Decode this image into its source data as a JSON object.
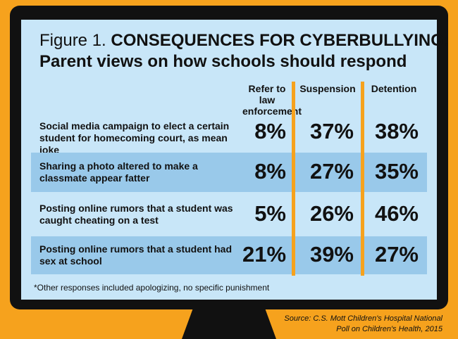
{
  "header": {
    "figure": "Figure 1.",
    "title": "CONSEQUENCES FOR CYBERBULLYING:",
    "subtitle": "Parent views on how schools should respond"
  },
  "table": {
    "columns": [
      "Refer to law enforcement",
      "Suspension",
      "Detention"
    ],
    "rows": [
      {
        "label": "Social media campaign to elect a certain student for homecoming court, as mean joke",
        "values": [
          "8%",
          "37%",
          "38%"
        ]
      },
      {
        "label": "Sharing a photo altered to make a classmate appear fatter",
        "values": [
          "8%",
          "27%",
          "35%"
        ]
      },
      {
        "label": "Posting online rumors that a student was caught cheating on a test",
        "values": [
          "5%",
          "26%",
          "46%"
        ]
      },
      {
        "label": "Posting online rumors that a student had sex at school",
        "values": [
          "21%",
          "39%",
          "27%"
        ]
      }
    ]
  },
  "footnote": "*Other responses included apologizing, no specific punishment",
  "source": "Source: C.S. Mott Children's Hospital National Poll on Children's Health, 2015"
}
